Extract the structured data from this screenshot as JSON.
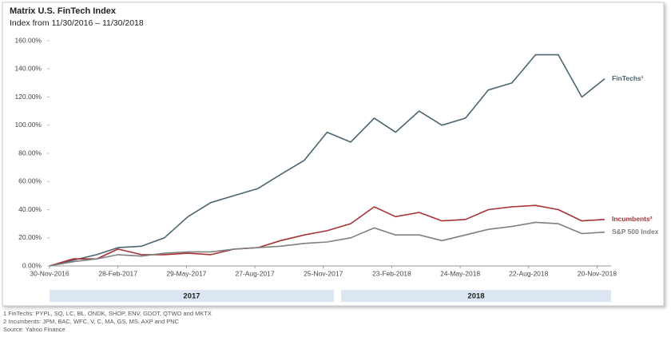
{
  "chart_data": {
    "type": "line",
    "title": "Matrix U.S. FinTech Index",
    "subtitle": "Index from 11/30/2016 – 11/30/2018",
    "x": [
      "30-Nov-2016",
      "31-Dec-2016",
      "31-Jan-2017",
      "28-Feb-2017",
      "31-Mar-2017",
      "30-Apr-2017",
      "31-May-2017",
      "30-Jun-2017",
      "31-Jul-2017",
      "31-Aug-2017",
      "30-Sep-2017",
      "31-Oct-2017",
      "30-Nov-2017",
      "31-Dec-2017",
      "31-Jan-2018",
      "28-Feb-2018",
      "31-Mar-2018",
      "30-Apr-2018",
      "31-May-2018",
      "30-Jun-2018",
      "31-Jul-2018",
      "31-Aug-2018",
      "30-Sep-2018",
      "31-Oct-2018",
      "30-Nov-2018"
    ],
    "series": [
      {
        "name": "FinTechs¹",
        "color": "#4a6470",
        "values": [
          0,
          4,
          8,
          13,
          14,
          20,
          35,
          45,
          50,
          55,
          65,
          75,
          95,
          88,
          105,
          95,
          110,
          100,
          105,
          125,
          130,
          150,
          150,
          120,
          133
        ]
      },
      {
        "name": "Incumbents²",
        "color": "#a93237",
        "values": [
          0,
          5,
          5,
          12,
          8,
          8,
          9,
          8,
          12,
          13,
          18,
          22,
          25,
          30,
          42,
          35,
          38,
          32,
          33,
          40,
          42,
          43,
          40,
          32,
          33
        ]
      },
      {
        "name": "S&P 500 Index",
        "color": "#7f7f7f",
        "values": [
          0,
          3,
          5,
          8,
          7,
          9,
          10,
          10,
          12,
          13,
          14,
          16,
          17,
          20,
          27,
          22,
          22,
          18,
          22,
          26,
          28,
          31,
          30,
          23,
          24
        ]
      }
    ],
    "xlim": [
      "30-Nov-2016",
      "30-Nov-2018"
    ],
    "xticks": [
      "30-Nov-2016",
      "28-Feb-2017",
      "29-May-2017",
      "27-Aug-2017",
      "25-Nov-2017",
      "23-Feb-2018",
      "24-May-2018",
      "22-Aug-2018",
      "20-Nov-2018"
    ],
    "ylim": [
      0,
      160
    ],
    "yticks": [
      {
        "value": 0,
        "label": "0.00%"
      },
      {
        "value": 20,
        "label": "20.00%"
      },
      {
        "value": 40,
        "label": "40.00%"
      },
      {
        "value": 60,
        "label": "60.00%"
      },
      {
        "value": 80,
        "label": "80.00%"
      },
      {
        "value": 100,
        "label": "100.00%"
      },
      {
        "value": 120,
        "label": "120.00%"
      },
      {
        "value": 140,
        "label": "140.00%"
      },
      {
        "value": 160,
        "label": "160.00%"
      }
    ],
    "grid": false,
    "year_bands": [
      "2017",
      "2018"
    ],
    "notes": [
      "1 FinTechs: PYPL, SQ, LC, BL, ONDK, SHOP, ENV, GDOT, QTWO and MKTX",
      "2 Incumbents: JPM, BAC, WFC, V, C, MA, GS, MS, AXP and PNC",
      "Source: Yahoo Finance"
    ]
  }
}
